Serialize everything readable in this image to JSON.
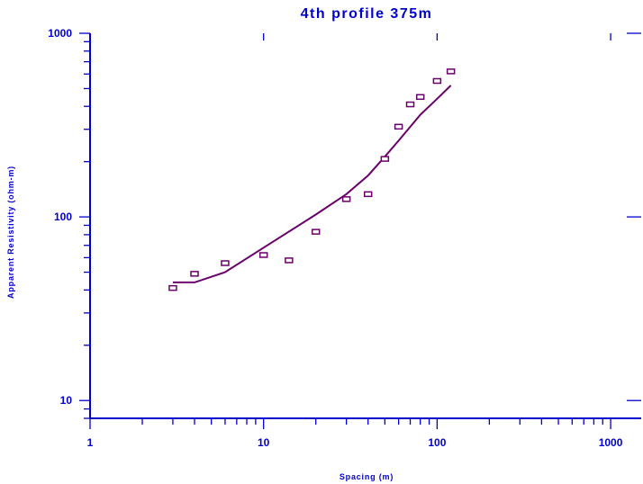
{
  "chart_data": {
    "type": "scatter",
    "title": "4th profile 375m",
    "xlabel": "Spacing (m)",
    "ylabel": "Apparent Resistivity (ohm-m)",
    "x_scale": "log",
    "y_scale": "log",
    "xlim": [
      1,
      1500
    ],
    "ylim": [
      8,
      1000
    ],
    "x_tick_labels": [
      {
        "value": 1,
        "label": "1"
      },
      {
        "value": 10,
        "label": "10"
      },
      {
        "value": 100,
        "label": "100"
      },
      {
        "value": 1000,
        "label": "1000"
      }
    ],
    "y_tick_labels": [
      {
        "value": 10,
        "label": "10"
      },
      {
        "value": 100,
        "label": "100"
      },
      {
        "value": 1000,
        "label": "1000"
      }
    ],
    "grid": false,
    "series": [
      {
        "kind": "points",
        "marker": "rectangle",
        "x": [
          3,
          4,
          6,
          10,
          14,
          20,
          30,
          40,
          50,
          60,
          70,
          80,
          100,
          120
        ],
        "y": [
          41,
          49,
          56,
          62,
          58,
          83,
          125,
          133,
          207,
          310,
          410,
          450,
          550,
          620
        ]
      },
      {
        "kind": "line",
        "x": [
          3,
          4,
          6,
          10,
          20,
          30,
          40,
          50,
          60,
          80,
          100,
          120
        ],
        "y": [
          44,
          44,
          50,
          68,
          103,
          133,
          168,
          213,
          260,
          360,
          440,
          520
        ]
      }
    ],
    "colors": {
      "axis": "#0000cc",
      "title": "#0000cc",
      "data": "#6a006a"
    }
  }
}
